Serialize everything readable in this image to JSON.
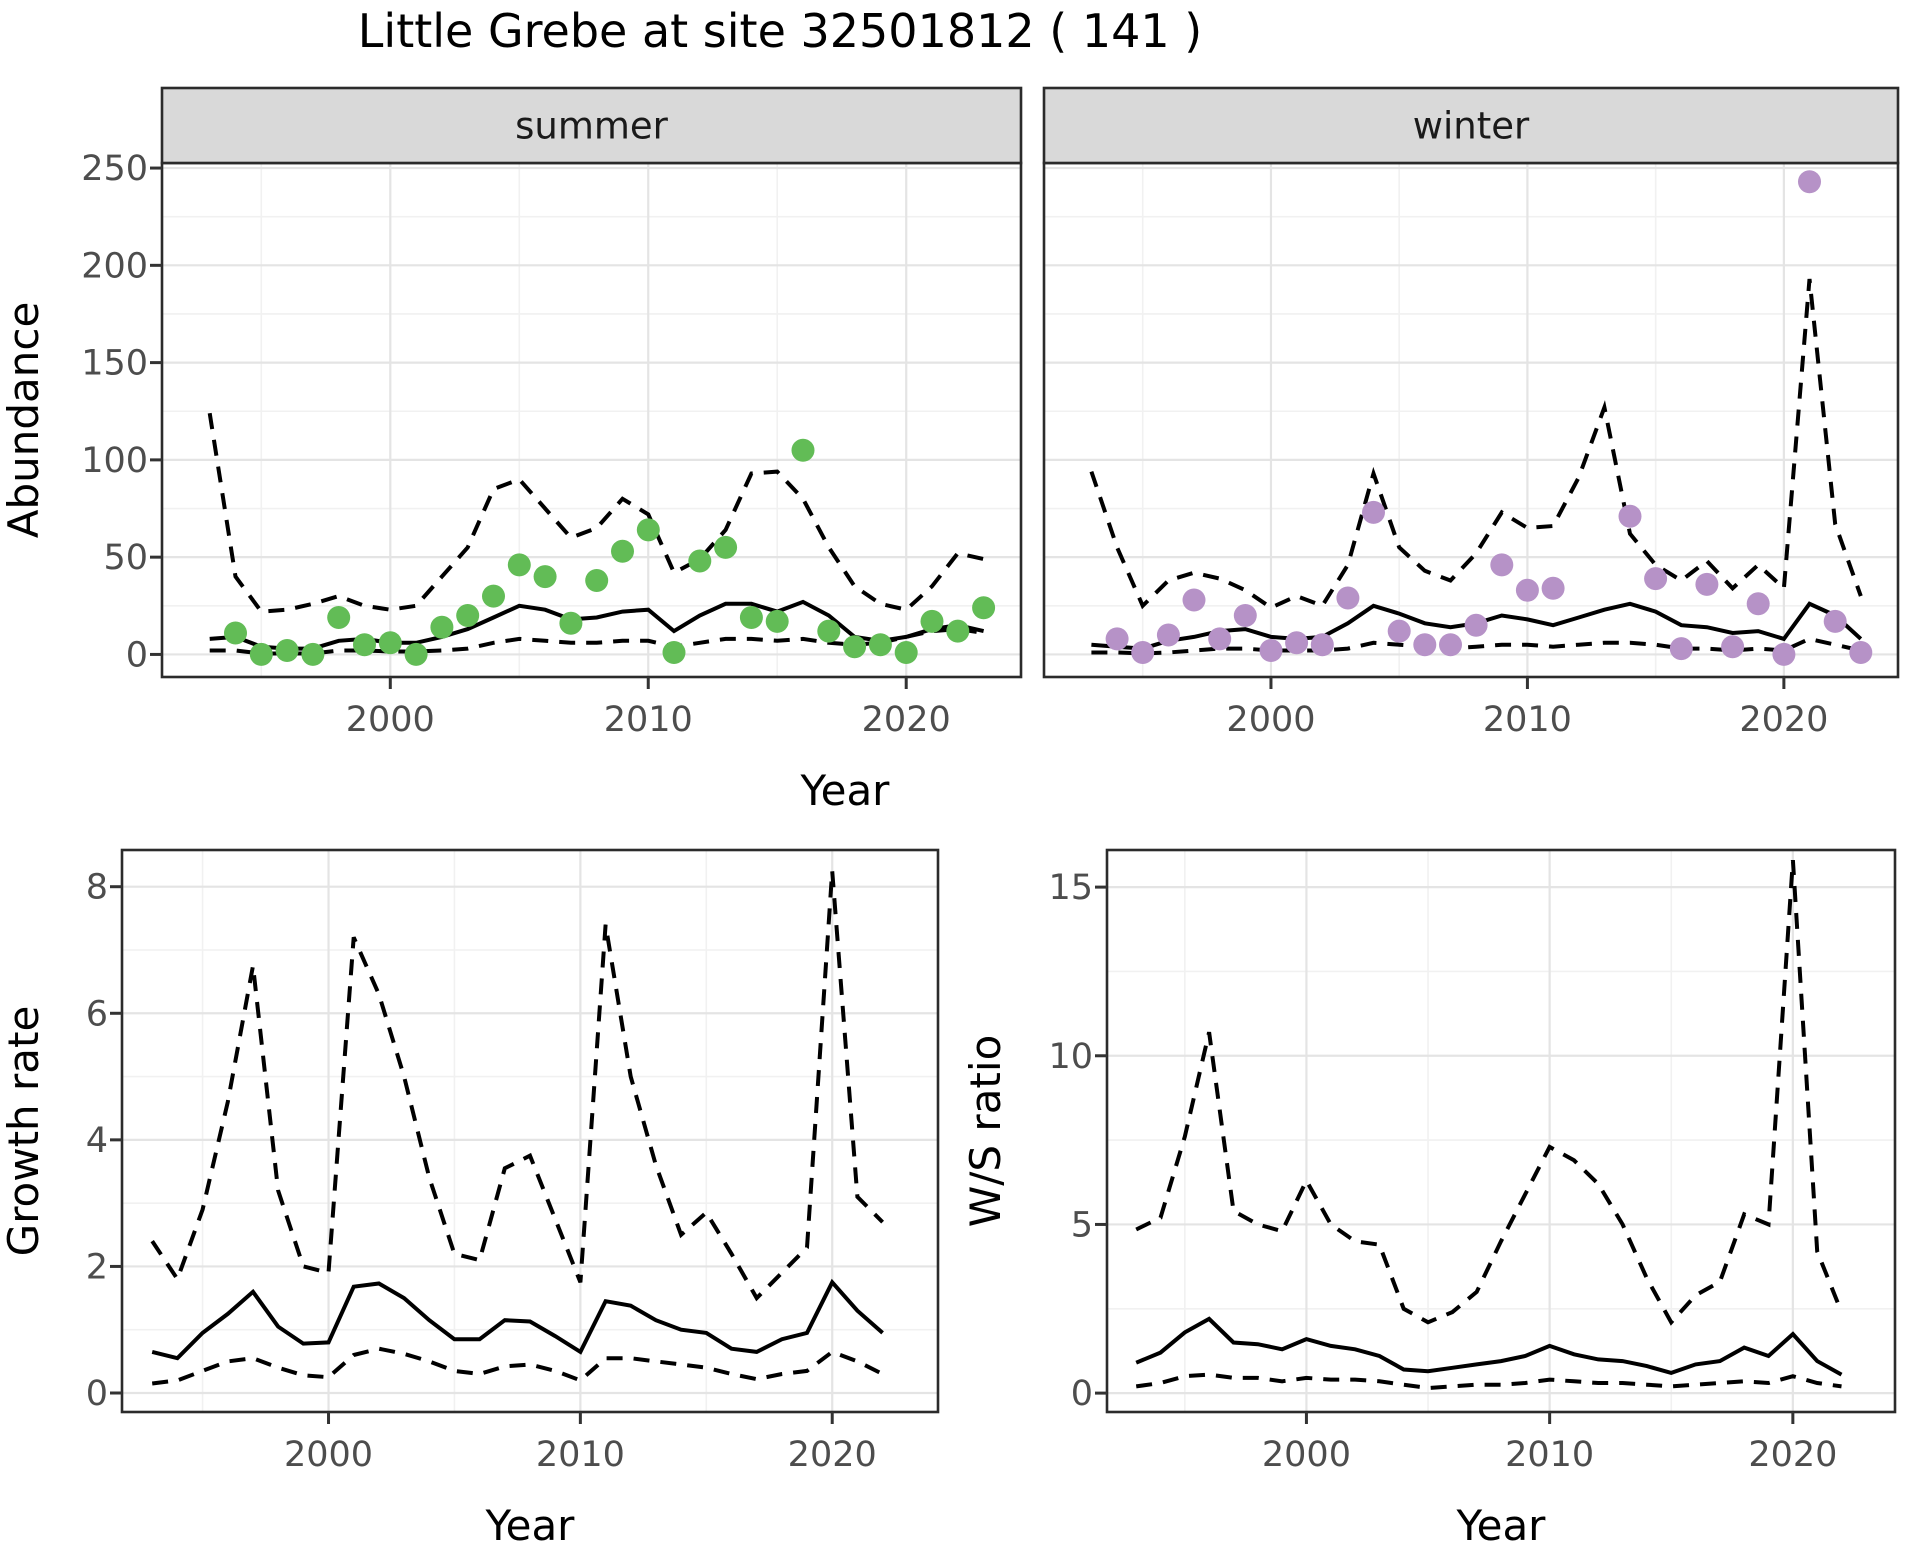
{
  "title": "Little Grebe at site 32501812 ( 141 )",
  "colors": {
    "summer_point": "#62BC56",
    "winter_point": "#B692C7",
    "line": "#000000",
    "strip_bg": "#D9D9D9",
    "panel_border": "#2B2B2B",
    "grid_major": "#E4E4E4",
    "grid_minor": "#F1F1F1",
    "tick_label": "#4D4D4D",
    "axis_title": "#000000",
    "tick_mark": "#333333"
  },
  "shared_x_title": "Year",
  "chart_data": [
    {
      "type": "scatter",
      "facet_label": "summer",
      "ylabel": "Abundance",
      "xlabel": "Year",
      "x_ticks": [
        2000,
        2010,
        2020
      ],
      "x_minor": [
        1995,
        2005,
        2015
      ],
      "y_ticks": [
        0,
        50,
        100,
        150,
        200,
        250
      ],
      "y_minor": [
        25,
        75,
        125,
        175,
        225
      ],
      "xlim": [
        1991.15,
        2024.45
      ],
      "ylim": [
        -11.6,
        252.6
      ],
      "line_years": [
        1993,
        1994,
        1995,
        1996,
        1997,
        1998,
        1999,
        2000,
        2001,
        2002,
        2003,
        2004,
        2005,
        2006,
        2007,
        2008,
        2009,
        2010,
        2011,
        2012,
        2013,
        2014,
        2015,
        2016,
        2017,
        2018,
        2019,
        2020,
        2021,
        2022,
        2023
      ],
      "mean": [
        8,
        9,
        4,
        3,
        3,
        7,
        8,
        6,
        6,
        9,
        13,
        19,
        25,
        23,
        18,
        19,
        22,
        23,
        12,
        20,
        26,
        26,
        22,
        27,
        20,
        9,
        7,
        9,
        13,
        15,
        12
      ],
      "upper": [
        124,
        40,
        22,
        23,
        26,
        30,
        25,
        23,
        25,
        40,
        55,
        85,
        90,
        75,
        60,
        65,
        80,
        72,
        42,
        49,
        64,
        93,
        94,
        80,
        55,
        35,
        26,
        23,
        35,
        52,
        49
      ],
      "lower": [
        2,
        2,
        0.5,
        0.5,
        0.5,
        2,
        2,
        1.5,
        1.5,
        2,
        3,
        6,
        8,
        7,
        6,
        6,
        7,
        7,
        4,
        6,
        8,
        8,
        7,
        8,
        6,
        5,
        6,
        9,
        12,
        13,
        11
      ],
      "point_years": [
        1994,
        1995,
        1996,
        1997,
        1998,
        1999,
        2000,
        2001,
        2002,
        2003,
        2004,
        2005,
        2006,
        2007,
        2008,
        2009,
        2010,
        2011,
        2012,
        2013,
        2014,
        2015,
        2016,
        2017,
        2018,
        2019,
        2020,
        2021,
        2022,
        2023
      ],
      "point_values": [
        11,
        0,
        2,
        0,
        19,
        5,
        6,
        0,
        14,
        20,
        30,
        46,
        40,
        16,
        38,
        53,
        64,
        1,
        48,
        55,
        19,
        17,
        105,
        12,
        4,
        5,
        1,
        17,
        12,
        24
      ]
    },
    {
      "type": "scatter",
      "facet_label": "winter",
      "ylabel": "Abundance",
      "xlabel": "Year",
      "x_ticks": [
        2000,
        2010,
        2020
      ],
      "x_minor": [
        1995,
        2005,
        2015
      ],
      "y_ticks": [
        0,
        50,
        100,
        150,
        200,
        250
      ],
      "y_minor": [
        25,
        75,
        125,
        175,
        225
      ],
      "xlim": [
        1991.15,
        2024.45
      ],
      "ylim": [
        -11.6,
        252.6
      ],
      "line_years": [
        1993,
        1994,
        1995,
        1996,
        1997,
        1998,
        1999,
        2000,
        2001,
        2002,
        2003,
        2004,
        2005,
        2006,
        2007,
        2008,
        2009,
        2010,
        2011,
        2012,
        2013,
        2014,
        2015,
        2016,
        2017,
        2018,
        2019,
        2020,
        2021,
        2022,
        2023
      ],
      "mean": [
        5,
        4,
        3,
        7,
        9,
        12,
        13,
        9,
        8,
        9,
        16,
        25,
        21,
        16,
        14,
        16,
        20,
        18,
        15,
        19,
        23,
        26,
        22,
        15,
        14,
        11,
        12,
        8,
        26,
        20,
        8
      ],
      "upper": [
        94,
        55,
        25,
        38,
        42,
        39,
        33,
        24,
        30,
        25,
        46,
        93,
        55,
        43,
        38,
        52,
        73,
        65,
        66,
        91,
        127,
        62,
        46,
        38,
        48,
        34,
        46,
        34,
        193,
        67,
        30
      ],
      "lower": [
        1,
        1,
        0.5,
        1,
        2,
        3,
        3,
        2,
        2,
        2,
        3,
        6,
        5,
        4,
        3,
        4,
        5,
        5,
        4,
        5,
        6,
        6,
        5,
        3,
        3,
        2,
        3,
        2,
        8,
        5,
        2
      ],
      "point_years": [
        1994,
        1995,
        1996,
        1997,
        1998,
        1999,
        2000,
        2001,
        2002,
        2003,
        2004,
        2005,
        2006,
        2007,
        2008,
        2009,
        2010,
        2011,
        2012,
        2013,
        2014,
        2015,
        2016,
        2017,
        2018,
        2019,
        2020,
        2021,
        2022,
        2023
      ],
      "point_values": [
        8,
        1,
        10,
        28,
        8,
        20,
        2,
        6,
        5,
        29,
        73,
        12,
        5,
        5,
        15,
        46,
        33,
        34,
        null,
        null,
        71,
        39,
        3,
        36,
        4,
        26,
        0,
        243,
        17,
        1
      ]
    },
    {
      "type": "line",
      "facet_label": null,
      "ylabel": "Growth rate",
      "xlabel": "Year",
      "x_ticks": [
        2000,
        2010,
        2020
      ],
      "x_minor": [
        1995,
        2005,
        2015
      ],
      "y_ticks": [
        0,
        2,
        4,
        6,
        8
      ],
      "y_minor": [
        1,
        3,
        5,
        7
      ],
      "xlim": [
        1991.8,
        2024.2
      ],
      "ylim": [
        -0.3,
        8.58
      ],
      "line_years": [
        1993,
        1994,
        1995,
        1996,
        1997,
        1998,
        1999,
        2000,
        2001,
        2002,
        2003,
        2004,
        2005,
        2006,
        2007,
        2008,
        2009,
        2010,
        2011,
        2012,
        2013,
        2014,
        2015,
        2016,
        2017,
        2018,
        2019,
        2020,
        2021,
        2022
      ],
      "mean": [
        0.65,
        0.55,
        0.95,
        1.25,
        1.6,
        1.05,
        0.78,
        0.8,
        1.68,
        1.73,
        1.5,
        1.15,
        0.85,
        0.85,
        1.15,
        1.13,
        0.9,
        0.65,
        1.45,
        1.38,
        1.15,
        1.0,
        0.95,
        0.7,
        0.65,
        0.85,
        0.95,
        1.75,
        1.3,
        0.95
      ],
      "upper": [
        2.4,
        1.8,
        2.9,
        4.6,
        6.75,
        3.2,
        2.0,
        1.9,
        7.2,
        6.3,
        5.0,
        3.4,
        2.2,
        2.1,
        3.55,
        3.75,
        2.75,
        1.75,
        7.4,
        5.0,
        3.6,
        2.5,
        2.85,
        2.2,
        1.5,
        1.9,
        2.3,
        8.25,
        3.1,
        2.7
      ],
      "lower": [
        0.15,
        0.2,
        0.35,
        0.5,
        0.55,
        0.4,
        0.28,
        0.25,
        0.6,
        0.7,
        0.62,
        0.5,
        0.35,
        0.3,
        0.42,
        0.45,
        0.35,
        0.2,
        0.55,
        0.55,
        0.5,
        0.45,
        0.4,
        0.3,
        0.22,
        0.3,
        0.35,
        0.65,
        0.5,
        0.3
      ],
      "point_years": [],
      "point_values": []
    },
    {
      "type": "line",
      "facet_label": null,
      "ylabel": "W/S ratio",
      "xlabel": "Year",
      "x_ticks": [
        2000,
        2010,
        2020
      ],
      "x_minor": [
        1995,
        2005,
        2015
      ],
      "y_ticks": [
        0,
        5,
        10,
        15
      ],
      "y_minor": [
        2.5,
        7.5,
        12.5
      ],
      "xlim": [
        1991.8,
        2024.2
      ],
      "ylim": [
        -0.56,
        16.1
      ],
      "line_years": [
        1993,
        1994,
        1995,
        1996,
        1997,
        1998,
        1999,
        2000,
        2001,
        2002,
        2003,
        2004,
        2005,
        2006,
        2007,
        2008,
        2009,
        2010,
        2011,
        2012,
        2013,
        2014,
        2015,
        2016,
        2017,
        2018,
        2019,
        2020,
        2021,
        2022
      ],
      "mean": [
        0.9,
        1.2,
        1.8,
        2.2,
        1.5,
        1.45,
        1.3,
        1.6,
        1.4,
        1.3,
        1.1,
        0.7,
        0.65,
        0.75,
        0.85,
        0.95,
        1.1,
        1.4,
        1.15,
        1.0,
        0.95,
        0.8,
        0.6,
        0.85,
        0.95,
        1.35,
        1.1,
        1.75,
        0.95,
        0.55
      ],
      "upper": [
        4.85,
        5.2,
        7.6,
        10.7,
        5.4,
        5.0,
        4.8,
        6.3,
        5.0,
        4.5,
        4.4,
        2.5,
        2.1,
        2.4,
        3.0,
        4.5,
        5.9,
        7.3,
        6.9,
        6.2,
        5.0,
        3.4,
        2.1,
        2.9,
        3.3,
        5.3,
        5.0,
        15.8,
        4.2,
        2.4
      ],
      "lower": [
        0.2,
        0.3,
        0.5,
        0.55,
        0.45,
        0.45,
        0.35,
        0.45,
        0.4,
        0.4,
        0.35,
        0.25,
        0.15,
        0.2,
        0.25,
        0.25,
        0.3,
        0.4,
        0.35,
        0.3,
        0.3,
        0.25,
        0.2,
        0.25,
        0.3,
        0.35,
        0.3,
        0.5,
        0.3,
        0.2
      ],
      "point_years": [],
      "point_values": []
    }
  ]
}
